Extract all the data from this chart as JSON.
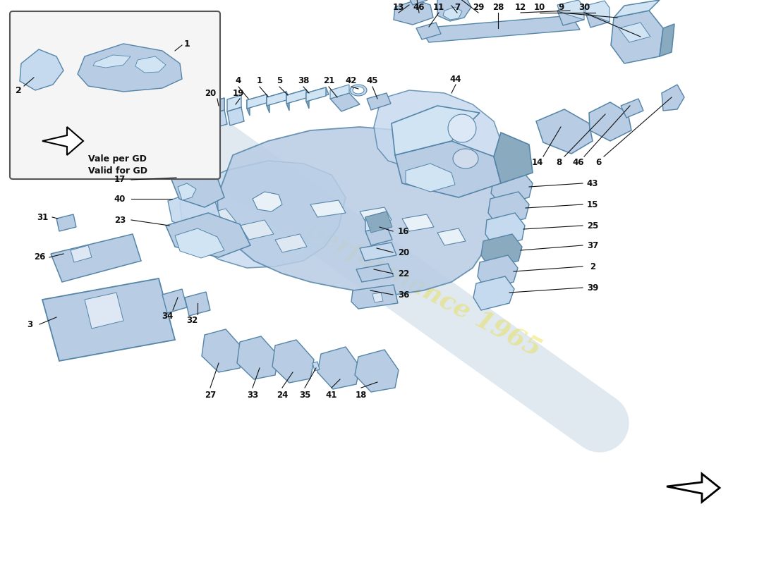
{
  "background_color": "#ffffff",
  "part_color_main": "#b8cce4",
  "part_color_light": "#d0e4f4",
  "part_color_dark": "#8aaabf",
  "part_color_mid": "#c5d9ef",
  "part_edge_color": "#5585a8",
  "line_color": "#111111",
  "text_color": "#111111",
  "watermark_color": "#e8e040",
  "inset_text_line1": "Vale per GD",
  "inset_text_line2": "Valid for GD",
  "fig_width": 11.0,
  "fig_height": 8.0
}
